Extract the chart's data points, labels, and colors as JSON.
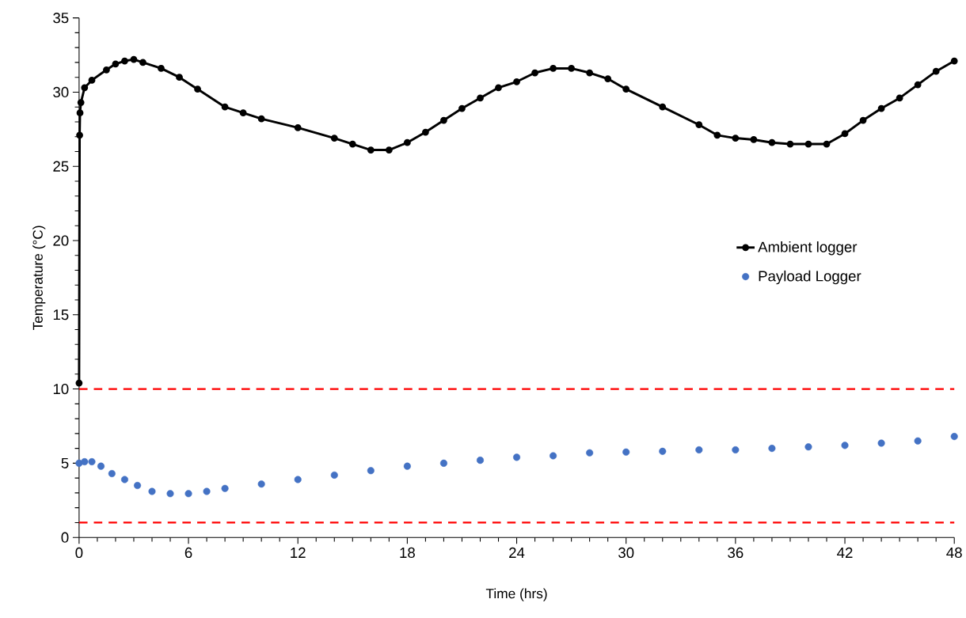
{
  "chart_data": {
    "type": "line",
    "xlabel": "Time (hrs)",
    "ylabel": "Temperature (°C)",
    "xlim": [
      0,
      48
    ],
    "xticks": [
      0,
      6,
      12,
      18,
      24,
      30,
      36,
      42,
      48
    ],
    "ylim": [
      0,
      35
    ],
    "yticks": [
      0,
      5,
      10,
      15,
      20,
      25,
      30,
      35
    ],
    "legend": "right",
    "grid": false,
    "ref_lines": [
      {
        "axis": "y",
        "value": 10,
        "color": "#ff0000",
        "line_style": "dashed"
      },
      {
        "axis": "y",
        "value": 1,
        "color": "#ff0000",
        "line_style": "dashed"
      }
    ],
    "series": [
      {
        "name": "Ambient logger",
        "marker": "circle",
        "color": "#000000",
        "x": [
          0,
          0.03,
          0.05,
          0.1,
          0.3,
          0.7,
          1.5,
          2,
          2.5,
          3,
          3.5,
          4.5,
          5.5,
          6.5,
          8,
          9,
          10,
          12,
          14,
          15,
          16,
          17,
          18,
          19,
          20,
          21,
          22,
          23,
          24,
          25,
          26,
          27,
          28,
          29,
          30,
          32,
          34,
          35,
          36,
          37,
          38,
          39,
          40,
          41,
          42,
          43,
          44,
          45,
          46,
          47,
          48
        ],
        "values": [
          10.4,
          27.1,
          28.6,
          29.3,
          30.3,
          30.8,
          31.5,
          31.9,
          32.1,
          32.2,
          32.0,
          31.6,
          31.0,
          30.2,
          29.0,
          28.6,
          28.2,
          27.6,
          26.9,
          26.5,
          26.1,
          26.1,
          26.6,
          27.3,
          28.1,
          28.9,
          29.6,
          30.3,
          30.7,
          31.3,
          31.6,
          31.6,
          31.3,
          30.9,
          30.2,
          29.0,
          27.8,
          27.1,
          26.9,
          26.8,
          26.6,
          26.5,
          26.5,
          26.5,
          27.2,
          28.1,
          28.9,
          29.6,
          30.5,
          31.4,
          32.1
        ]
      },
      {
        "name": "Payload Logger",
        "type": "scatter",
        "marker": "circle",
        "color": "#4472c4",
        "x": [
          0,
          0.3,
          0.7,
          1.2,
          1.8,
          2.5,
          3.2,
          4,
          5,
          6,
          7,
          8,
          10,
          12,
          14,
          16,
          18,
          20,
          22,
          24,
          26,
          28,
          30,
          32,
          34,
          36,
          38,
          40,
          42,
          44,
          46,
          48
        ],
        "values": [
          5.0,
          5.1,
          5.1,
          4.8,
          4.3,
          3.9,
          3.5,
          3.1,
          2.95,
          2.95,
          3.1,
          3.3,
          3.6,
          3.9,
          4.2,
          4.5,
          4.8,
          5.0,
          5.2,
          5.4,
          5.5,
          5.7,
          5.75,
          5.8,
          5.9,
          5.9,
          6.0,
          6.1,
          6.2,
          6.35,
          6.5,
          6.8
        ]
      }
    ]
  }
}
